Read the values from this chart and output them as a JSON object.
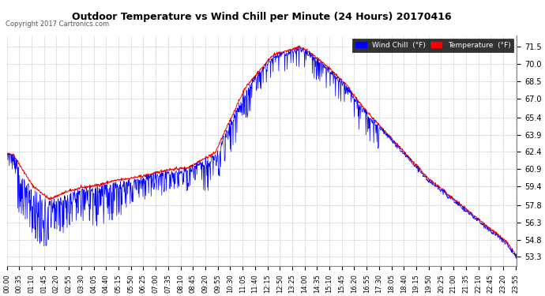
{
  "title": "Outdoor Temperature vs Wind Chill per Minute (24 Hours) 20170416",
  "copyright": "Copyright 2017 Cartronics.com",
  "legend_wind_chill": "Wind Chill  (°F)",
  "legend_temperature": "Temperature  (°F)",
  "wind_chill_color": "#0000ff",
  "temperature_color": "#ff0000",
  "background_color": "#ffffff",
  "grid_color": "#bbbbbb",
  "ylim_min": 52.5,
  "ylim_max": 72.5,
  "yticks": [
    53.3,
    54.8,
    56.3,
    57.8,
    59.4,
    60.9,
    62.4,
    63.9,
    65.4,
    67.0,
    68.5,
    70.0,
    71.5
  ],
  "figsize": [
    6.9,
    3.75
  ],
  "dpi": 100
}
